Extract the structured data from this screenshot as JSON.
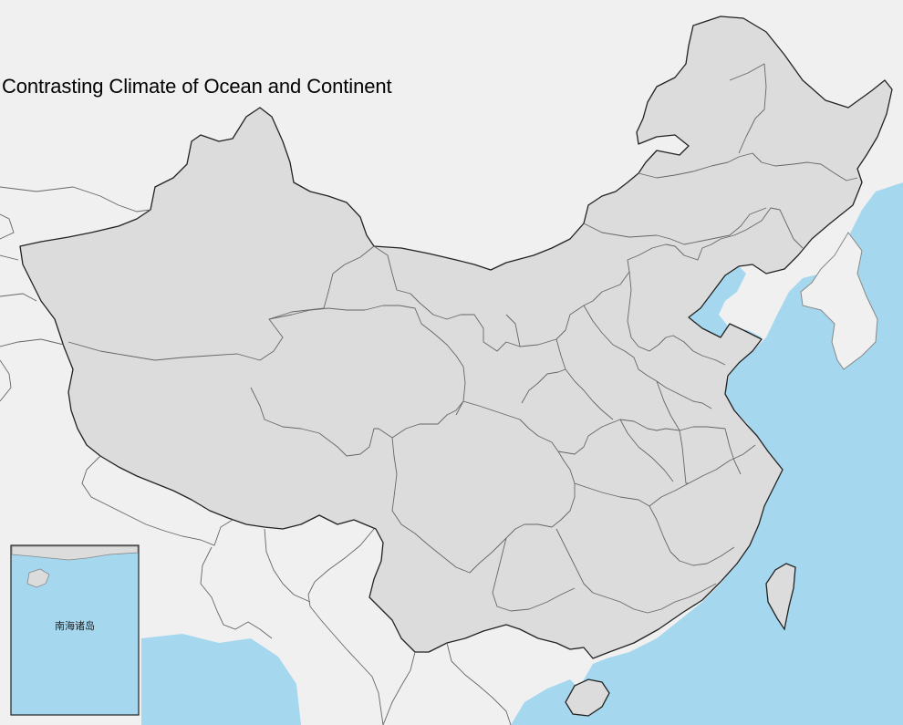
{
  "title": "Contrasting Climate of Ocean and Continent",
  "inset": {
    "label": "南海诸岛"
  },
  "colors": {
    "background": "#f0f0f0",
    "ocean": "#a5d8ef",
    "china_fill": "#dcdcdc",
    "neighbor_fill": "#f0f0f0",
    "province_border": "#666666",
    "country_border": "#222222"
  }
}
